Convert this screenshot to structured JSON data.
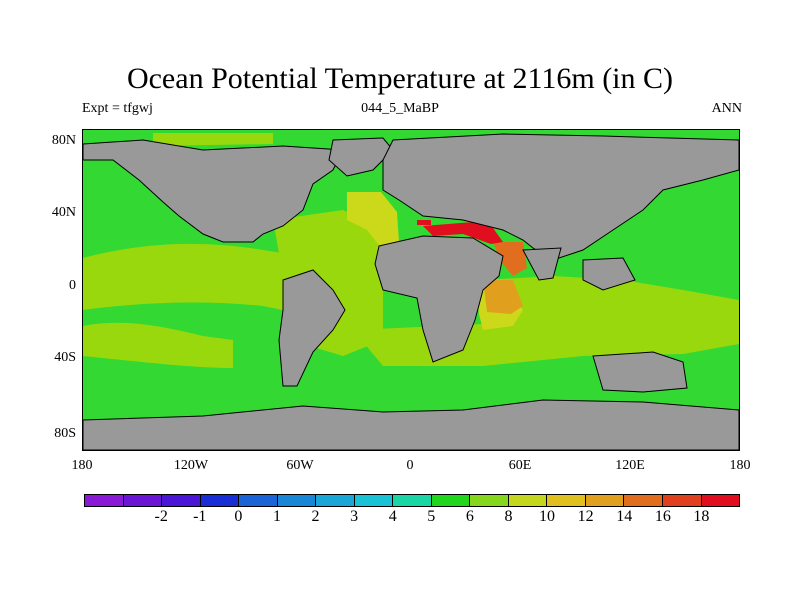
{
  "title": "Ocean Potential Temperature at 2116m (in C)",
  "experiment_label": "Expt = tfgwj",
  "center_label": "044_5_MaBP",
  "right_label": "ANN",
  "y_axis_ticks": [
    "80N",
    "40N",
    "0",
    "40S",
    "80S"
  ],
  "x_axis_ticks": [
    "180",
    "120W",
    "60W",
    "0",
    "60E",
    "120E",
    "180"
  ],
  "colorbar": {
    "colors": [
      "#8a1ad6",
      "#6a16d6",
      "#4b16d6",
      "#1a2ed6",
      "#1a64d6",
      "#1a86d6",
      "#1aa6d6",
      "#1ac2d6",
      "#1ad6a6",
      "#22d61e",
      "#86d61e",
      "#c4d61e",
      "#e0c01e",
      "#e0a01e",
      "#e06e1e",
      "#e0401e",
      "#e00e1e"
    ],
    "labels": [
      "-2",
      "-1",
      "0",
      "1",
      "2",
      "3",
      "4",
      "5",
      "6",
      "8",
      "10",
      "12",
      "14",
      "16",
      "18"
    ]
  },
  "colors": {
    "land": "#999999",
    "ocean_green": "#33d833",
    "ocean_lightgreen": "#99d80d",
    "ocean_yellow": "#ccd81a",
    "ocean_orange": "#e0a01e",
    "ocean_darkorange": "#e06e1e",
    "ocean_red": "#e00e1e"
  }
}
